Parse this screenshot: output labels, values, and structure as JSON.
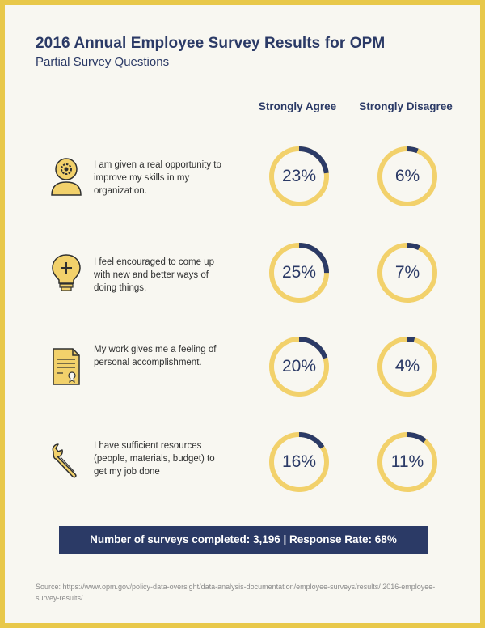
{
  "title": "2016 Annual Employee Survey Results for OPM",
  "subtitle": "Partial Survey Questions",
  "colors": {
    "ring": "#f2d16b",
    "accent": "#2b3a66",
    "border": "#e8c84a"
  },
  "chart_data": {
    "type": "donut",
    "columns": [
      "Strongly Agree",
      "Strongly Disagree"
    ],
    "rows": [
      {
        "icon": "person-gear-icon",
        "question": "I am given a real opportunity to improve my skills in my organization.",
        "strongly_agree": 23,
        "strongly_disagree": 6
      },
      {
        "icon": "lightbulb-icon",
        "question": "I feel encouraged to come up with new and better ways of doing things.",
        "strongly_agree": 25,
        "strongly_disagree": 7
      },
      {
        "icon": "certificate-icon",
        "question": "My work gives me a feeling of personal accomplishment.",
        "strongly_agree": 20,
        "strongly_disagree": 4
      },
      {
        "icon": "wrench-icon",
        "question": "I have sufficient resources (people, materials, budget) to get my job done",
        "strongly_agree": 16,
        "strongly_disagree": 11
      }
    ],
    "labels": {
      "r0": {
        "agree": "23%",
        "disagree": "6%"
      },
      "r1": {
        "agree": "25%",
        "disagree": "7%"
      },
      "r2": {
        "agree": "20%",
        "disagree": "4%"
      },
      "r3": {
        "agree": "16%",
        "disagree": "11%"
      }
    }
  },
  "footer": {
    "banner": "Number of surveys completed: 3,196 | Response Rate: 68%",
    "source": "Source: https://www.opm.gov/policy-data-oversight/data-analysis-documentation/employee-surveys/results/ 2016-employee-survey-results/"
  }
}
